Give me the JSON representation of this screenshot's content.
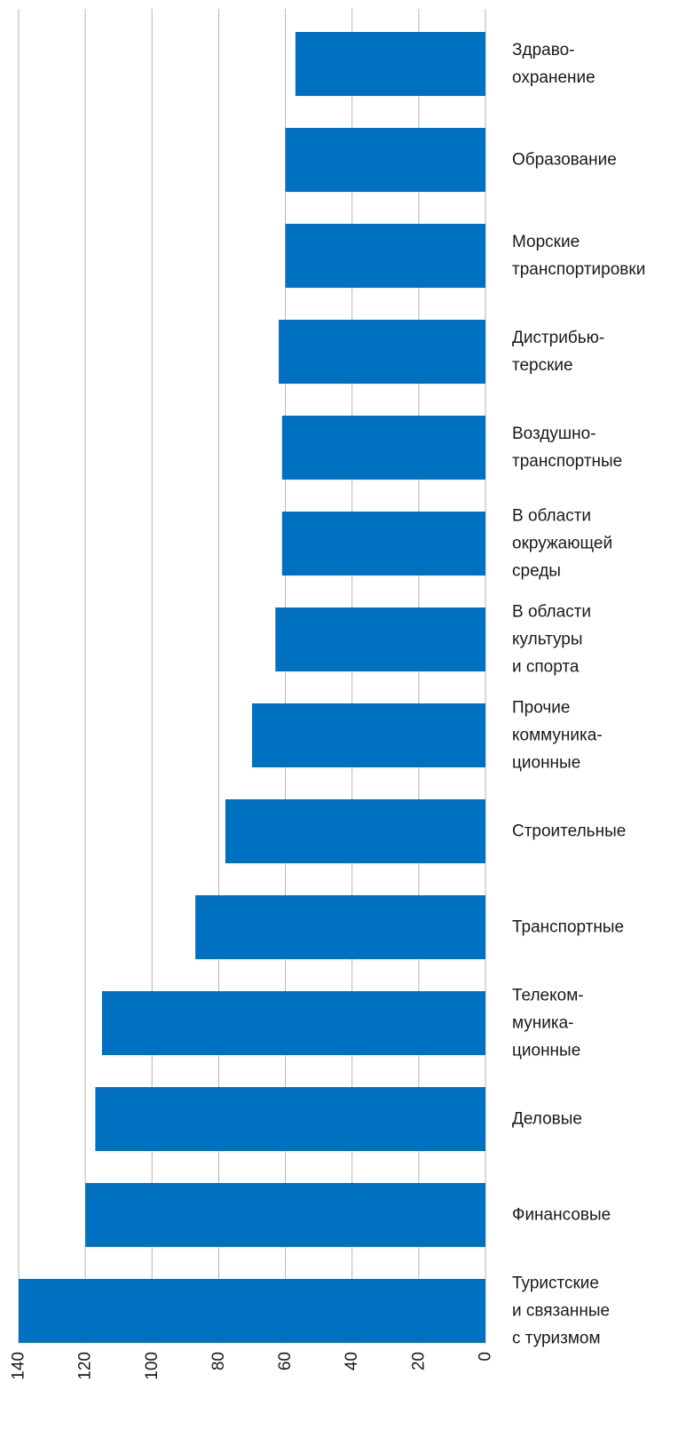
{
  "chart_data": {
    "type": "bar",
    "orientation": "horizontal",
    "x_direction": "reversed",
    "grid": true,
    "bar_color": "#0070C0",
    "xlim": [
      0,
      140
    ],
    "xticks": [
      0,
      20,
      40,
      60,
      80,
      100,
      120,
      140
    ],
    "tick_labels": [
      "0",
      "20",
      "40",
      "60",
      "80",
      "100",
      "120",
      "140"
    ],
    "categories": [
      [
        "Здраво-",
        "охранение"
      ],
      [
        "Образование"
      ],
      [
        "Морские",
        "транспортировки"
      ],
      [
        "Дистрибью-",
        "терские"
      ],
      [
        "Воздушно-",
        "транспортные"
      ],
      [
        "В области",
        "окружающей",
        "среды"
      ],
      [
        "В области",
        "культуры",
        "и спорта"
      ],
      [
        "Прочие",
        "коммуника-",
        "ционные"
      ],
      [
        "Строительные"
      ],
      [
        "Транспортные"
      ],
      [
        "Телеком-",
        "муника-",
        "ционные"
      ],
      [
        "Деловые"
      ],
      [
        "Финансовые"
      ],
      [
        "Туристские",
        "и связанные",
        "с туризмом"
      ]
    ],
    "values": [
      57,
      60,
      60,
      62,
      61,
      61,
      63,
      70,
      78,
      87,
      115,
      117,
      120,
      140
    ]
  }
}
